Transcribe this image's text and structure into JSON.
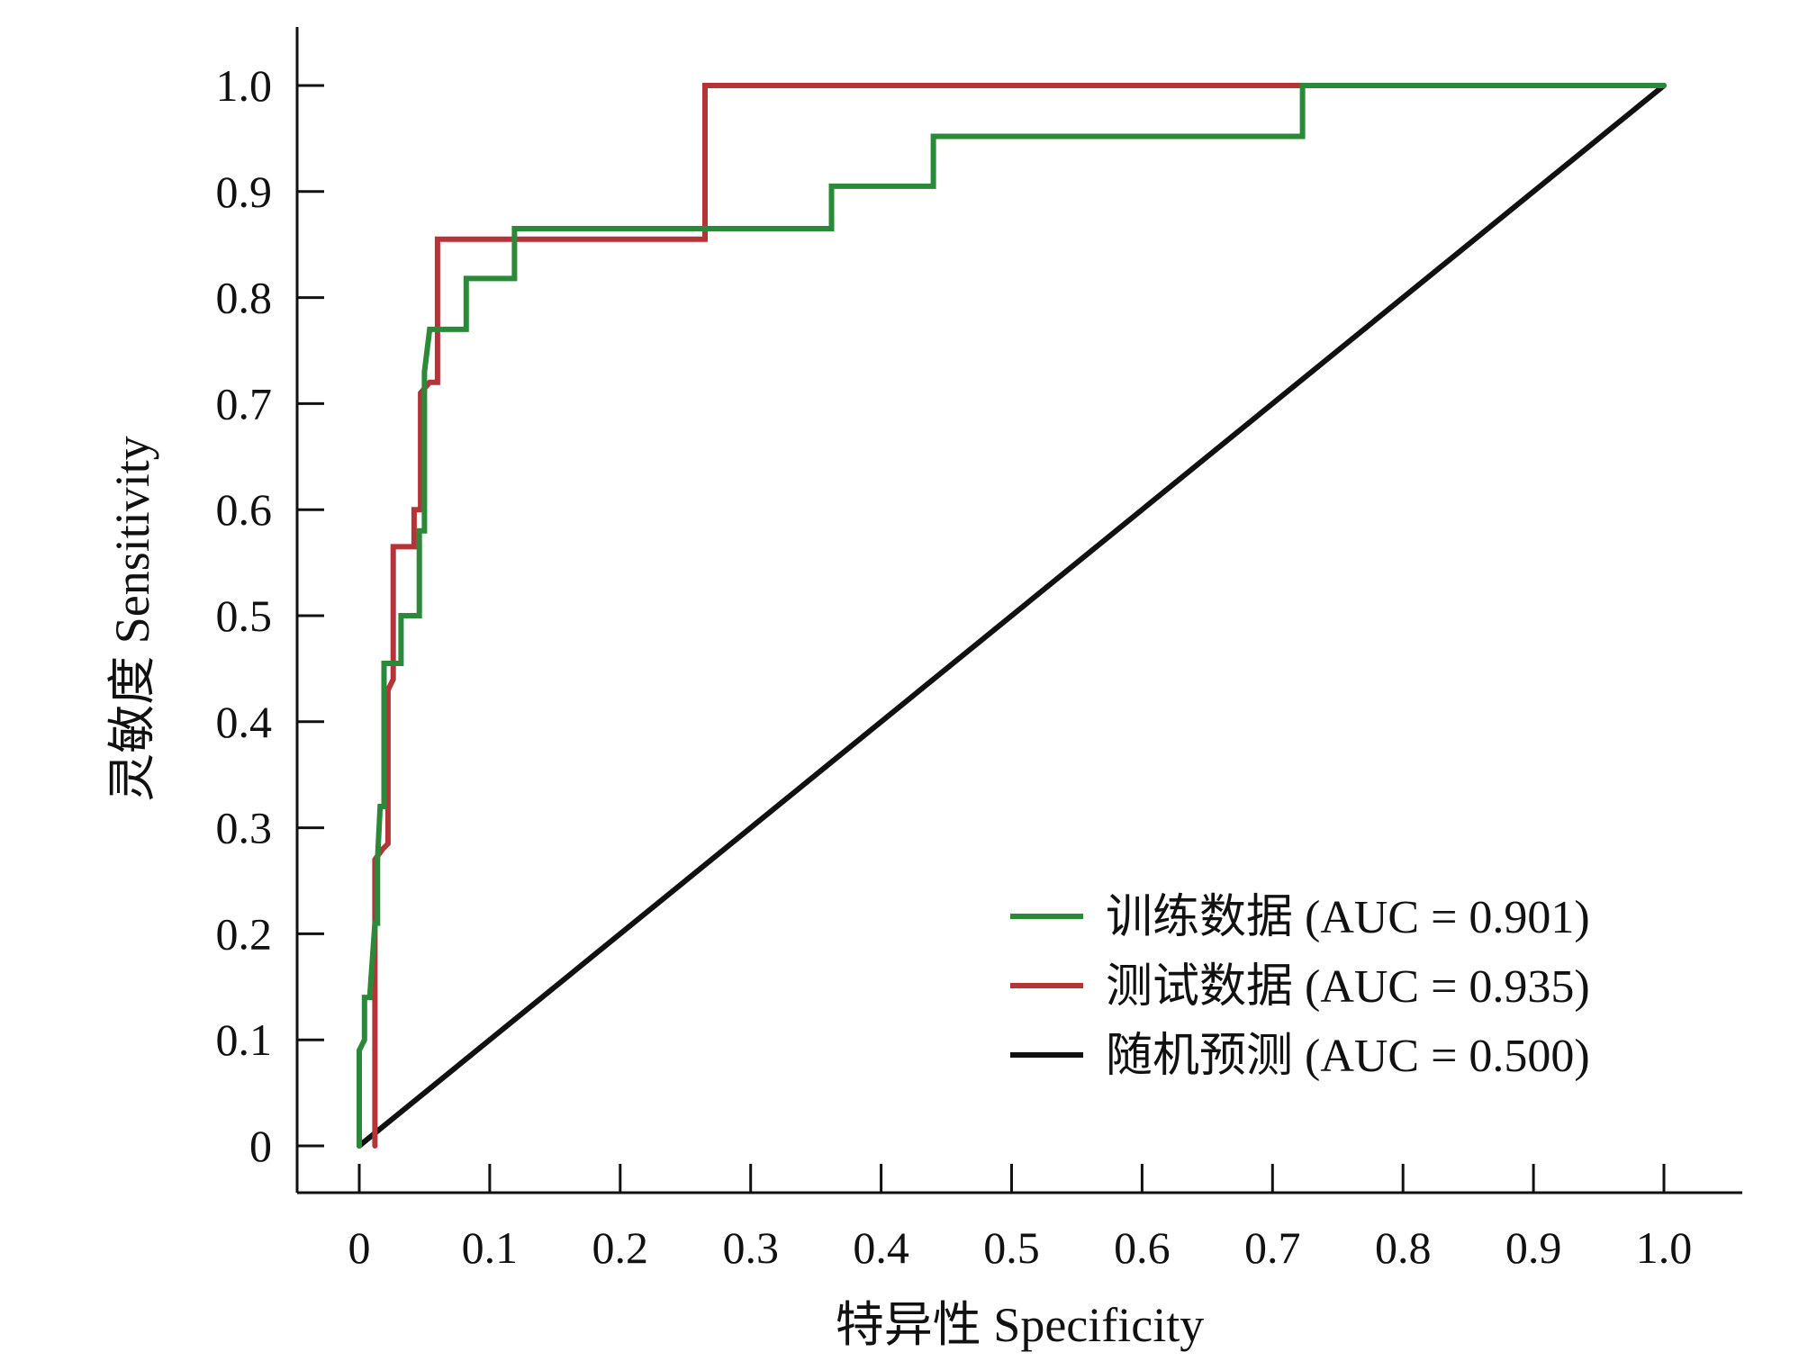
{
  "chart_data": {
    "type": "line",
    "title": "",
    "xlabel": "特异性 Specificity",
    "ylabel": "灵敏度 Sensitivity",
    "xlim": [
      0,
      1.0
    ],
    "ylim": [
      0,
      1.0
    ],
    "xticks": [
      "0",
      "0.1",
      "0.2",
      "0.3",
      "0.4",
      "0.5",
      "0.6",
      "0.7",
      "0.8",
      "0.9",
      "1.0"
    ],
    "yticks": [
      "0",
      "0.1",
      "0.2",
      "0.3",
      "0.4",
      "0.5",
      "0.6",
      "0.7",
      "0.8",
      "0.9",
      "1.0"
    ],
    "grid": false,
    "legend_position": "bottom-right",
    "series": [
      {
        "name": "训练数据 (AUC = 0.901)",
        "color": "#2a8a3a",
        "points": [
          [
            0.0,
            0.0
          ],
          [
            0.0,
            0.09
          ],
          [
            0.004,
            0.1
          ],
          [
            0.004,
            0.14
          ],
          [
            0.008,
            0.14
          ],
          [
            0.012,
            0.21
          ],
          [
            0.014,
            0.21
          ],
          [
            0.014,
            0.27
          ],
          [
            0.016,
            0.32
          ],
          [
            0.019,
            0.32
          ],
          [
            0.019,
            0.455
          ],
          [
            0.032,
            0.455
          ],
          [
            0.032,
            0.5
          ],
          [
            0.046,
            0.5
          ],
          [
            0.046,
            0.58
          ],
          [
            0.05,
            0.58
          ],
          [
            0.05,
            0.73
          ],
          [
            0.054,
            0.77
          ],
          [
            0.082,
            0.77
          ],
          [
            0.082,
            0.818
          ],
          [
            0.119,
            0.818
          ],
          [
            0.119,
            0.865
          ],
          [
            0.362,
            0.865
          ],
          [
            0.362,
            0.905
          ],
          [
            0.44,
            0.905
          ],
          [
            0.44,
            0.952
          ],
          [
            0.723,
            0.952
          ],
          [
            0.723,
            1.0
          ],
          [
            1.0,
            1.0
          ]
        ]
      },
      {
        "name": "测试数据 (AUC = 0.935)",
        "color": "#b5343a",
        "points": [
          [
            0.012,
            0.0
          ],
          [
            0.012,
            0.27
          ],
          [
            0.018,
            0.28
          ],
          [
            0.022,
            0.285
          ],
          [
            0.022,
            0.43
          ],
          [
            0.026,
            0.44
          ],
          [
            0.026,
            0.565
          ],
          [
            0.042,
            0.565
          ],
          [
            0.042,
            0.6
          ],
          [
            0.047,
            0.6
          ],
          [
            0.047,
            0.71
          ],
          [
            0.054,
            0.72
          ],
          [
            0.06,
            0.72
          ],
          [
            0.06,
            0.855
          ],
          [
            0.265,
            0.855
          ],
          [
            0.265,
            1.0
          ],
          [
            0.723,
            1.0
          ]
        ]
      },
      {
        "name": "随机预测 (AUC = 0.500)",
        "color": "#111111",
        "points": [
          [
            0.0,
            0.0
          ],
          [
            1.0,
            1.0
          ]
        ]
      }
    ]
  }
}
